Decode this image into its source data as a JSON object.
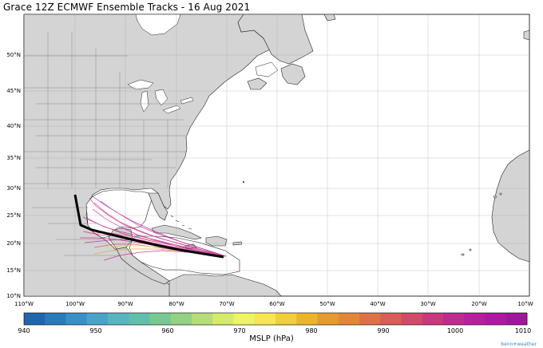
{
  "title": "Grace 12Z ECMWF Ensemble Tracks - 16 Aug 2021",
  "latitudes": [
    "50°N",
    "45°N",
    "40°N",
    "35°N",
    "30°N",
    "25°N",
    "20°N",
    "15°N",
    "10°N"
  ],
  "longitudes": [
    "110°W",
    "100°W",
    "90°W",
    "80°W",
    "70°W",
    "60°W",
    "50°W",
    "40°W",
    "30°W",
    "20°W",
    "10°W"
  ],
  "colorbar": {
    "label": "MSLP (hPa)",
    "ticks": [
      "940",
      "950",
      "960",
      "970",
      "980",
      "990",
      "1000",
      "1010"
    ],
    "colors": [
      "#2166ac",
      "#2b7bba",
      "#3a8fc4",
      "#4aa3c8",
      "#5ab4bf",
      "#63bfa9",
      "#79c892",
      "#93d183",
      "#b5dd79",
      "#d6ea6e",
      "#eef565",
      "#f7e64f",
      "#f1cf37",
      "#e9b62a",
      "#e59c2f",
      "#e2873a",
      "#dd7247",
      "#d85e58",
      "#d14a6a",
      "#c9387d",
      "#c02b8f",
      "#b81f9d",
      "#ad1a9f",
      "#a01899"
    ]
  },
  "colors": {
    "ocean": "#ffffff",
    "land": "#d4d4d4",
    "coast": "#222222",
    "track_mean": "#000000",
    "track_member": "#c4228a"
  },
  "brand": "benn✈weather"
}
